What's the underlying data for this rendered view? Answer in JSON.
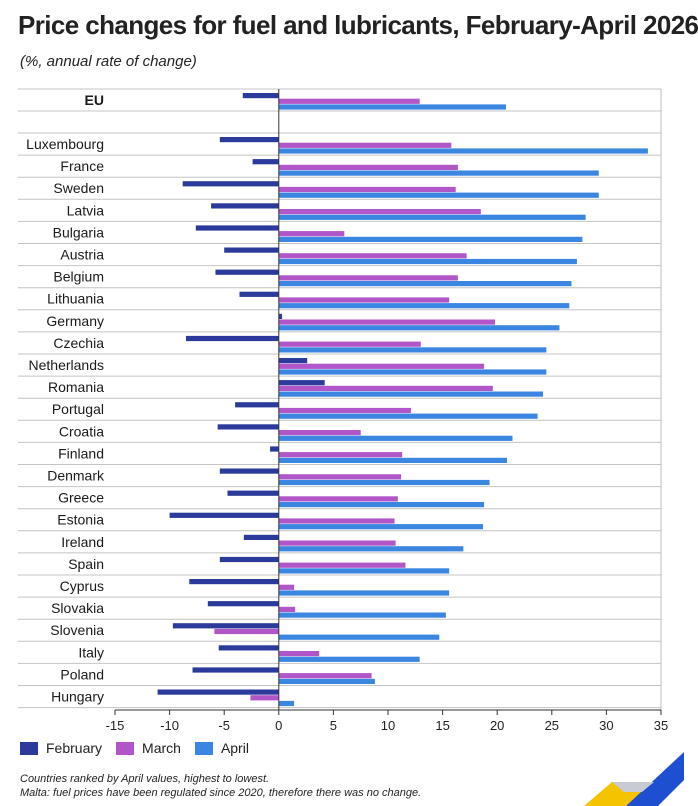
{
  "header": {
    "title": "Price changes for fuel and lubricants, February-April 2026",
    "subtitle": "(%, annual rate of change)"
  },
  "legend": {
    "items": [
      {
        "label": "February",
        "color": "#2b3a9b"
      },
      {
        "label": "March",
        "color": "#b156c8"
      },
      {
        "label": "April",
        "color": "#3b86e0"
      }
    ]
  },
  "notes": {
    "line1": "Countries ranked by April values, highest to lowest.",
    "line2": "Malta: fuel prices have been regulated since 2020, therefore there was no change."
  },
  "chart_data": {
    "type": "bar",
    "orientation": "horizontal",
    "grid": true,
    "xlim": [
      -15,
      35
    ],
    "x_ticks": [
      -15,
      -10,
      -5,
      0,
      5,
      10,
      15,
      20,
      25,
      30,
      35
    ],
    "categories": [
      "EU",
      "Luxembourg",
      "France",
      "Sweden",
      "Latvia",
      "Bulgaria",
      "Austria",
      "Belgium",
      "Lithuania",
      "Germany",
      "Czechia",
      "Netherlands",
      "Romania",
      "Portugal",
      "Croatia",
      "Finland",
      "Denmark",
      "Greece",
      "Estonia",
      "Ireland",
      "Spain",
      "Cyprus",
      "Slovakia",
      "Slovenia",
      "Italy",
      "Poland",
      "Hungary"
    ],
    "series": [
      {
        "name": "February",
        "color": "#2b3a9b",
        "values": [
          -3.3,
          -5.4,
          -2.4,
          -8.8,
          -6.2,
          -7.6,
          -5.0,
          -5.8,
          -3.6,
          0.3,
          -8.5,
          2.6,
          4.2,
          -4.0,
          -5.6,
          -0.8,
          -5.4,
          -4.7,
          -10.0,
          -3.2,
          -5.4,
          -8.2,
          -6.5,
          -9.7,
          -5.5,
          -7.9,
          -11.1
        ]
      },
      {
        "name": "March",
        "color": "#b156c8",
        "values": [
          12.9,
          15.8,
          16.4,
          16.2,
          18.5,
          6.0,
          17.2,
          16.4,
          15.6,
          19.8,
          13.0,
          18.8,
          19.6,
          12.1,
          7.5,
          11.3,
          11.2,
          10.9,
          10.6,
          10.7,
          11.6,
          1.4,
          1.5,
          -5.9,
          3.7,
          8.5,
          -2.6
        ]
      },
      {
        "name": "April",
        "color": "#3b86e0",
        "values": [
          20.8,
          33.8,
          29.3,
          29.3,
          28.1,
          27.8,
          27.3,
          26.8,
          26.6,
          25.7,
          24.5,
          24.5,
          24.2,
          23.7,
          21.4,
          20.9,
          19.3,
          18.8,
          18.7,
          16.9,
          15.6,
          15.6,
          15.3,
          14.7,
          12.9,
          8.8,
          1.4
        ]
      }
    ]
  }
}
